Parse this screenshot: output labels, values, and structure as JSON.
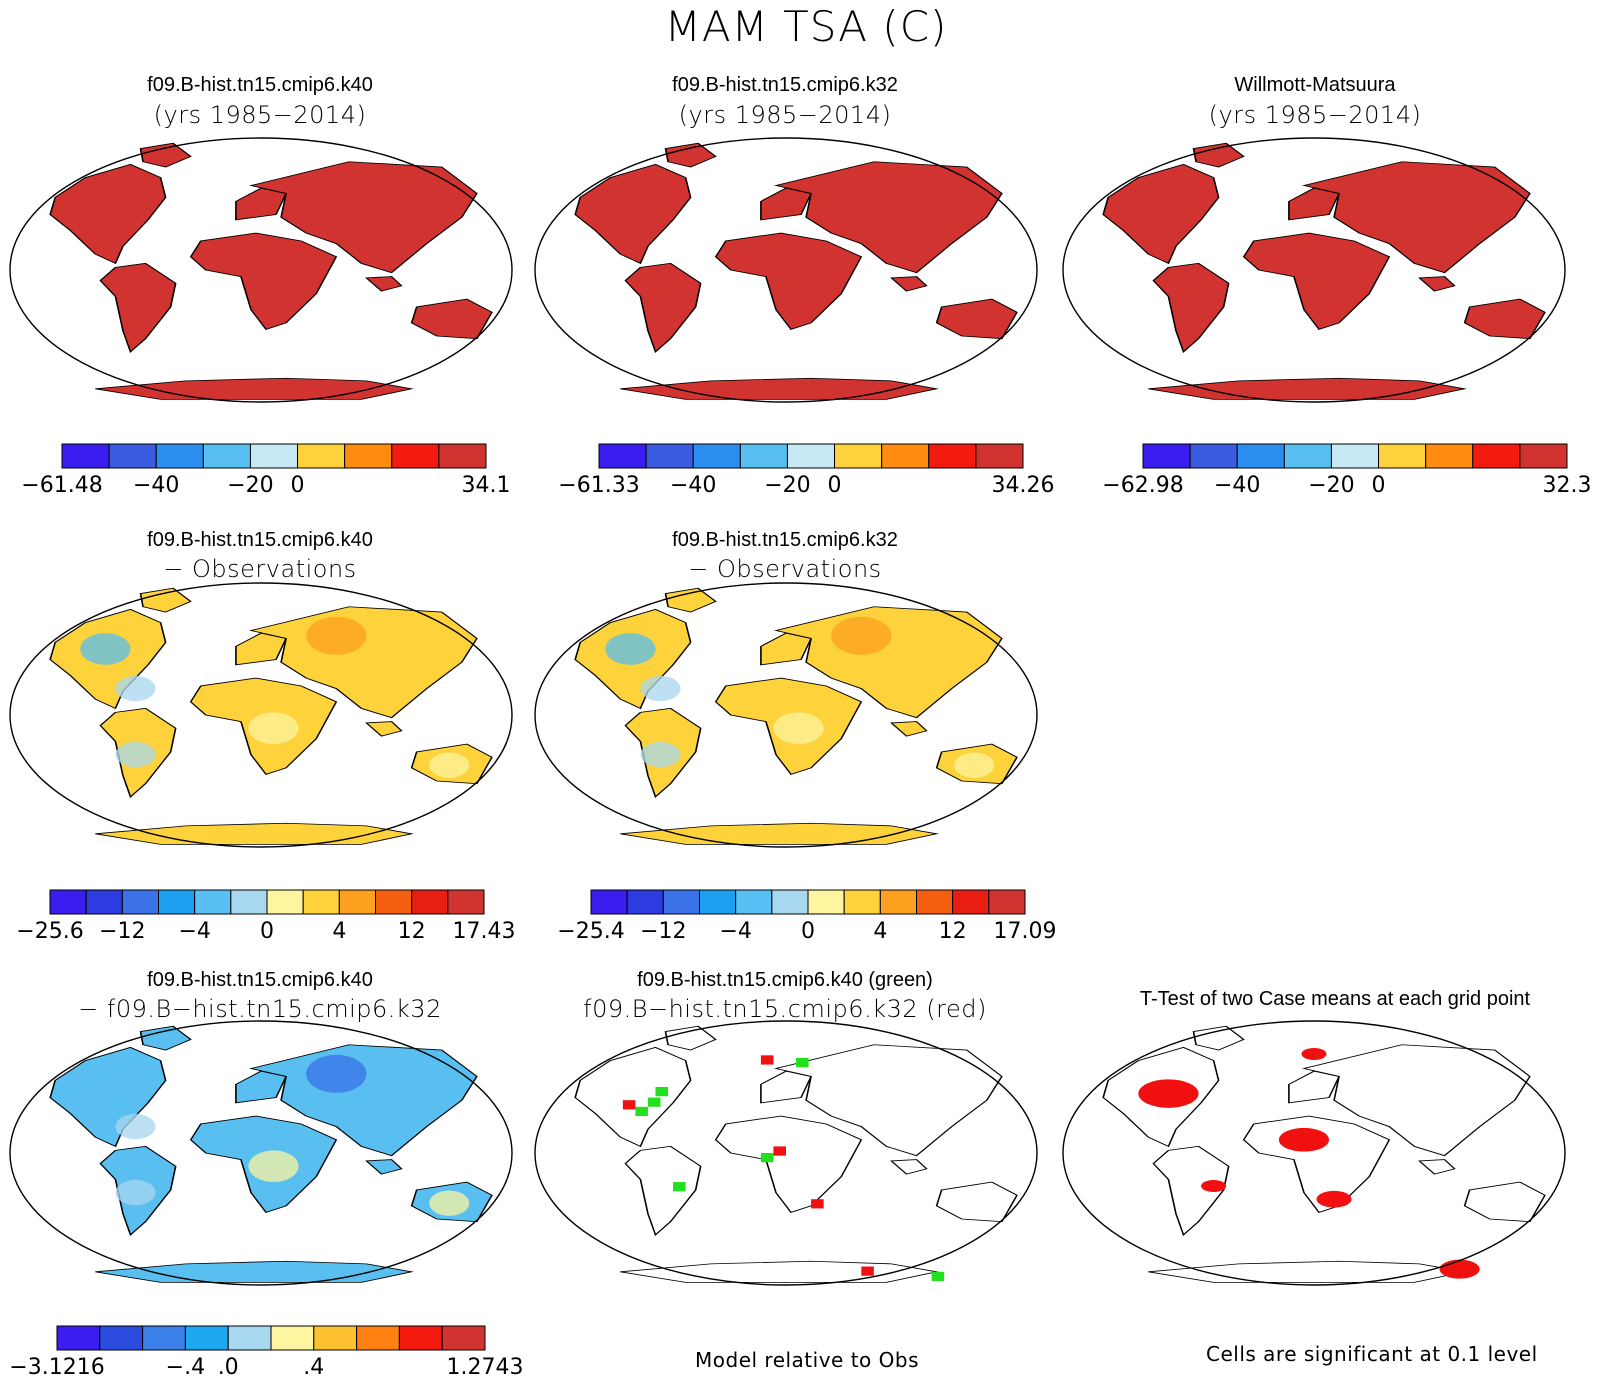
{
  "figure_title": "MAM TSA (C)",
  "panels": [
    {
      "title": "f09.B-hist.tn15.cmip6.k40",
      "subtitle": "(yrs 1985−2014)",
      "colorbar": {
        "colors": [
          "#3a1ef0",
          "#3b5ce0",
          "#2b8ff0",
          "#58bff0",
          "#c6e8f5",
          "#fdd23a",
          "#fd8c10",
          "#f51a10",
          "#d13330"
        ],
        "labels": [
          "−61.48",
          "−40",
          "−20",
          "0",
          "34.1"
        ]
      }
    },
    {
      "title": "f09.B-hist.tn15.cmip6.k32",
      "subtitle": "(yrs 1985−2014)",
      "colorbar": {
        "colors": [
          "#3a1ef0",
          "#3b5ce0",
          "#2b8ff0",
          "#58bff0",
          "#c6e8f5",
          "#fdd23a",
          "#fd8c10",
          "#f51a10",
          "#d13330"
        ],
        "labels": [
          "−61.33",
          "−40",
          "−20",
          "0",
          "34.26"
        ]
      }
    },
    {
      "title": "Willmott-Matsuura",
      "subtitle": "(yrs 1985−2014)",
      "colorbar": {
        "colors": [
          "#3a1ef0",
          "#3b5ce0",
          "#2b8ff0",
          "#58bff0",
          "#c6e8f5",
          "#fdd23a",
          "#fd8c10",
          "#f51a10",
          "#d13330"
        ],
        "labels": [
          "−62.98",
          "−40",
          "−20",
          "0",
          "32.3"
        ]
      }
    },
    {
      "title": "f09.B-hist.tn15.cmip6.k40",
      "subtitle": "− Observations",
      "colorbar": {
        "colors": [
          "#3a1ef0",
          "#2c3ce0",
          "#3b72e8",
          "#1ea0f0",
          "#58c0f5",
          "#a8d8f0",
          "#fdf5a0",
          "#fdd23a",
          "#fda020",
          "#f56010",
          "#e81e12",
          "#d13330"
        ],
        "labels": [
          "−25.6",
          "−12",
          "−4",
          "0",
          "4",
          "12",
          "17.43"
        ]
      }
    },
    {
      "title": "f09.B-hist.tn15.cmip6.k32",
      "subtitle": "− Observations",
      "colorbar": {
        "colors": [
          "#3a1ef0",
          "#2c3ce0",
          "#3b72e8",
          "#1ea0f0",
          "#58c0f5",
          "#a8d8f0",
          "#fdf5a0",
          "#fdd23a",
          "#fda020",
          "#f56010",
          "#e81e12",
          "#d13330"
        ],
        "labels": [
          "−25.4",
          "−12",
          "−4",
          "0",
          "4",
          "12",
          "17.09"
        ]
      }
    },
    {
      "title": "f09.B-hist.tn15.cmip6.k40",
      "subtitle": "− f09.B−hist.tn15.cmip6.k32",
      "colorbar": {
        "colors": [
          "#3a1ef0",
          "#2c4ce0",
          "#3b80e8",
          "#1ea8f0",
          "#a8d8f0",
          "#fdf5a0",
          "#fdc030",
          "#fd8010",
          "#f51a10",
          "#d13330"
        ],
        "labels": [
          "−3.1216",
          "−.4",
          ".0",
          ".4",
          "1.2743"
        ]
      }
    },
    {
      "title": "f09.B-hist.tn15.cmip6.k40 (green)",
      "subtitle": "f09.B−hist.tn15.cmip6.k32 (red)",
      "note": "Model relative to Obs"
    },
    {
      "title": "T-Test of two Case means at each grid point",
      "subtitle": "",
      "note": "Cells are significant at 0.1 level"
    }
  ],
  "chart_data": [
    {
      "type": "heatmap",
      "title": "f09.B-hist.tn15.cmip6.k40 (yrs 1985−2014)",
      "colorbar_labels": [
        "−61.48",
        "−40",
        "−20",
        "0",
        "34.1"
      ],
      "range": [
        -61.48,
        34.1
      ]
    },
    {
      "type": "heatmap",
      "title": "f09.B-hist.tn15.cmip6.k32 (yrs 1985−2014)",
      "colorbar_labels": [
        "−61.33",
        "−40",
        "−20",
        "0",
        "34.26"
      ],
      "range": [
        -61.33,
        34.26
      ]
    },
    {
      "type": "heatmap",
      "title": "Willmott-Matsuura (yrs 1985−2014)",
      "colorbar_labels": [
        "−62.98",
        "−40",
        "−20",
        "0",
        "32.3"
      ],
      "range": [
        -62.98,
        32.3
      ]
    },
    {
      "type": "heatmap",
      "title": "f09.B-hist.tn15.cmip6.k40 − Observations",
      "colorbar_labels": [
        "−25.6",
        "−12",
        "−4",
        "0",
        "4",
        "12",
        "17.43"
      ],
      "range": [
        -25.6,
        17.43
      ]
    },
    {
      "type": "heatmap",
      "title": "f09.B-hist.tn15.cmip6.k32 − Observations",
      "colorbar_labels": [
        "−25.4",
        "−12",
        "−4",
        "0",
        "4",
        "12",
        "17.09"
      ],
      "range": [
        -25.4,
        17.09
      ]
    },
    {
      "type": "heatmap",
      "title": "f09.B-hist.tn15.cmip6.k40 − f09.B−hist.tn15.cmip6.k32",
      "colorbar_labels": [
        "−3.1216",
        "−.4",
        ".0",
        ".4",
        "1.2743"
      ],
      "range": [
        -3.1216,
        1.2743
      ]
    },
    {
      "type": "heatmap",
      "title": "f09.B-hist.tn15.cmip6.k40 (green) f09.B−hist.tn15.cmip6.k32 (red)",
      "series": [
        {
          "name": "f09.B-hist.tn15.cmip6.k40",
          "color": "#22e01e"
        },
        {
          "name": "f09.B−hist.tn15.cmip6.k32",
          "color": "#f01010"
        }
      ]
    },
    {
      "type": "heatmap",
      "title": "T-Test of two Case means at each grid point",
      "significance_level": 0.1,
      "color": "#f01010"
    }
  ]
}
